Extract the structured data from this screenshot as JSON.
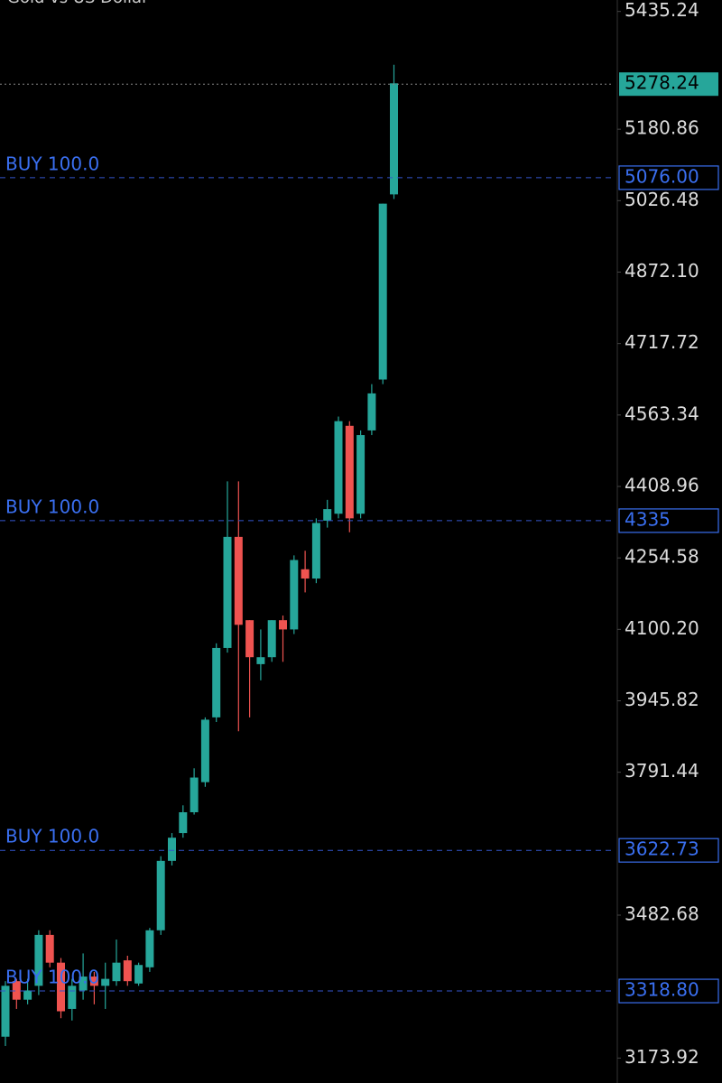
{
  "chart_data": {
    "type": "candlestick",
    "title": "Gold vs US Dollar",
    "up_color": "#26a69a",
    "down_color": "#ef5350",
    "ylim": [
      3120,
      5460
    ],
    "yticks": [
      5435.24,
      5180.86,
      5026.48,
      {
        "value": 4872.1,
        "label": "4872.10"
      },
      4717.72,
      4563.34,
      4408.96,
      4254.58,
      {
        "value": 4100.2,
        "label": "4100.20"
      },
      3945.82,
      3791.44,
      3482.68,
      3173.92
    ],
    "open": [
      3220,
      3340,
      3300,
      3330,
      3440,
      3380,
      3280,
      3320,
      3350,
      3330,
      3340,
      3385,
      3335,
      3370,
      3450,
      3600,
      3660,
      3705,
      3770,
      3910,
      4060,
      4300,
      4120,
      4025,
      4040,
      4120,
      4100,
      4230,
      4210,
      4335,
      4350,
      4540,
      4350,
      4530,
      4640,
      5040
    ],
    "high": [
      3340,
      3345,
      3345,
      3450,
      3450,
      3390,
      3345,
      3400,
      3360,
      3380,
      3430,
      3395,
      3380,
      3455,
      3610,
      3660,
      3720,
      3800,
      3910,
      4070,
      4420,
      4420,
      4120,
      4100,
      4120,
      4130,
      4260,
      4270,
      4340,
      4380,
      4560,
      4550,
      4530,
      4630,
      5020,
      5320
    ],
    "low": [
      3200,
      3280,
      3290,
      3310,
      3370,
      3260,
      3255,
      3300,
      3290,
      3280,
      3330,
      3330,
      3330,
      3360,
      3440,
      3590,
      3650,
      3700,
      3760,
      3900,
      4050,
      3880,
      3910,
      3990,
      4030,
      4030,
      4090,
      4180,
      4200,
      4320,
      4340,
      4310,
      4340,
      4520,
      4630,
      5030
    ],
    "close": [
      3330,
      3300,
      3320,
      3440,
      3380,
      3275,
      3330,
      3350,
      3330,
      3345,
      3380,
      3340,
      3375,
      3450,
      3600,
      3650,
      3705,
      3780,
      3905,
      4060,
      4300,
      4110,
      4040,
      4040,
      4120,
      4100,
      4250,
      4210,
      4330,
      4360,
      4550,
      4340,
      4520,
      4610,
      5020,
      5280
    ],
    "last_price": 5278.24,
    "orders": [
      {
        "label": "BUY 100.0",
        "value": 5076,
        "value_label": "5076.00"
      },
      {
        "label": "BUY 100.0",
        "value": 4335
      },
      {
        "label": "BUY 100.0",
        "value": 3622.73
      },
      {
        "label": "BUY 100.0",
        "value": 3318.8,
        "value_label": "3318.80"
      }
    ]
  }
}
